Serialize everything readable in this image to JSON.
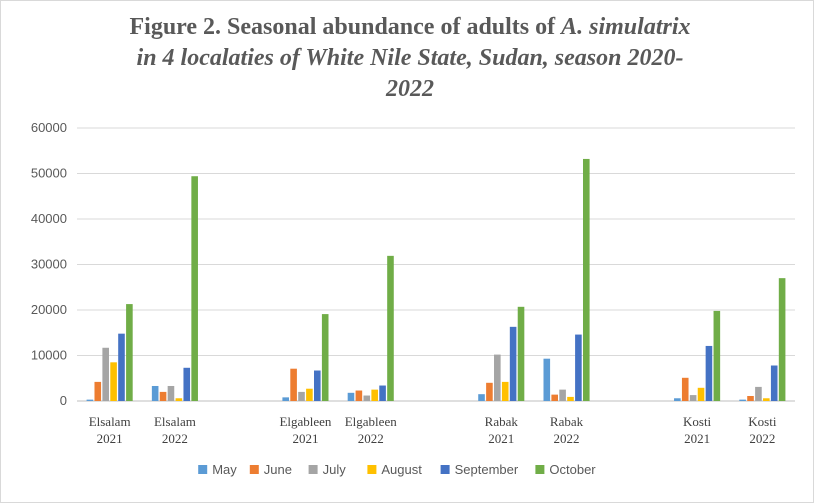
{
  "title": {
    "line1": "Figure 2. Seasonal abundance of adults of",
    "species": "A. simulatrix",
    "line2": "in 4 localaties of White Nile State, Sudan, season 2020-",
    "line3": "2022"
  },
  "chart_data": {
    "type": "bar",
    "title": "Figure 2. Seasonal abundance of adults of A. simulatrix in 4 localaties of White Nile State, Sudan, season 2020-2022",
    "xlabel": "",
    "ylabel": "",
    "ylim": [
      0,
      60000
    ],
    "yticks": [
      0,
      10000,
      20000,
      30000,
      40000,
      50000,
      60000
    ],
    "grid": true,
    "legend_position": "bottom",
    "categories": [
      [
        "Elsalam",
        "2021"
      ],
      [
        "Elsalam",
        "2022"
      ],
      [
        "",
        ""
      ],
      [
        "Elgableen",
        "2021"
      ],
      [
        "Elgableen",
        "2022"
      ],
      [
        "",
        ""
      ],
      [
        "Rabak",
        "2021"
      ],
      [
        "Rabak",
        "2022"
      ],
      [
        "",
        ""
      ],
      [
        "Kosti",
        "2021"
      ],
      [
        "Kosti",
        "2022"
      ]
    ],
    "series": [
      {
        "name": "May",
        "color": "#5b9bd5",
        "values": [
          300,
          3300,
          0,
          800,
          1800,
          0,
          1500,
          9300,
          0,
          600,
          300
        ]
      },
      {
        "name": "June",
        "color": "#ed7d31",
        "values": [
          4200,
          2000,
          0,
          7100,
          2300,
          0,
          4000,
          1400,
          0,
          5100,
          1100
        ]
      },
      {
        "name": "July",
        "color": "#a5a5a5",
        "values": [
          11700,
          3300,
          0,
          2000,
          1200,
          0,
          10200,
          2500,
          0,
          1300,
          3100
        ]
      },
      {
        "name": "August",
        "color": "#ffc000",
        "values": [
          8500,
          600,
          0,
          2700,
          2500,
          0,
          4200,
          900,
          0,
          2900,
          600
        ]
      },
      {
        "name": "September",
        "color": "#4472c4",
        "values": [
          14800,
          7300,
          0,
          6700,
          3400,
          0,
          16300,
          14600,
          0,
          12100,
          7800
        ]
      },
      {
        "name": "October",
        "color": "#70ad47",
        "values": [
          21300,
          49400,
          0,
          19100,
          31900,
          0,
          20700,
          53200,
          0,
          19800,
          27000
        ]
      }
    ]
  }
}
